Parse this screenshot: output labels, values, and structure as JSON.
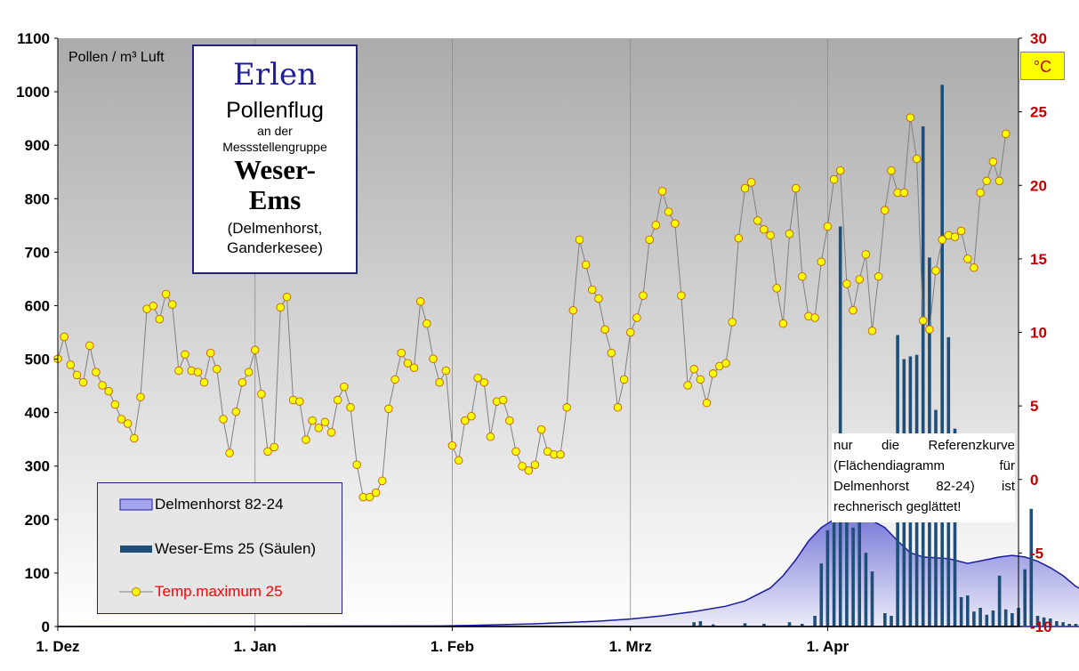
{
  "axis": {
    "left_unit": "Pollen / m³ Luft",
    "right_unit": "°C",
    "y_left_ticks": [
      "0",
      "100",
      "200",
      "300",
      "400",
      "500",
      "600",
      "700",
      "800",
      "900",
      "1000",
      "1100"
    ],
    "y_right_ticks": [
      "-10",
      "-5",
      "0",
      "5",
      "10",
      "15",
      "20",
      "25",
      "30"
    ],
    "x_ticks": [
      "1. Dez",
      "1. Jan",
      "1. Feb",
      "1. Mrz",
      "1. Apr"
    ]
  },
  "title_box": {
    "line1": "Erlen",
    "line2": "Pollenflug",
    "line3": "an der",
    "line4": "Messstellengruppe",
    "line5": "Weser-",
    "line6": "Ems",
    "line7": "(Delmenhorst,",
    "line8": "Ganderkesee)"
  },
  "legend": {
    "item1": "Delmenhorst 82-24",
    "item2": "Weser-Ems 25 (Säulen)",
    "item3": "Temp.maximum 25"
  },
  "note": "nur die Referenzkurve (Flächendiagramm für Delmenhorst 82-24) ist rechnerisch geglättet!",
  "colors": {
    "plot_bg_top": "#ababab",
    "plot_bg_bottom": "#ffffff",
    "bars": "#1f4e79",
    "area_fill": "#9a9ae6",
    "area_line": "#1a1aa0",
    "temp_line": "#808080",
    "temp_marker": "#ffff00",
    "right_axis": "#c00000"
  },
  "chart_data": {
    "type": "bar",
    "x_axis": "day index from 1. Dez (0) to ~20. Apr",
    "ylim_left": [
      0,
      1100
    ],
    "ylim_right": [
      -10,
      30
    ],
    "series": [
      {
        "name": "Delmenhorst 82-24",
        "kind": "area",
        "points": [
          [
            0,
            0
          ],
          [
            60,
            1
          ],
          [
            65,
            2
          ],
          [
            75,
            5
          ],
          [
            85,
            10
          ],
          [
            90,
            14
          ],
          [
            95,
            20
          ],
          [
            100,
            28
          ],
          [
            105,
            38
          ],
          [
            108,
            48
          ],
          [
            112,
            72
          ],
          [
            114,
            95
          ],
          [
            116,
            125
          ],
          [
            118,
            160
          ],
          [
            120,
            185
          ],
          [
            122,
            200
          ],
          [
            124,
            206
          ],
          [
            126,
            205
          ],
          [
            128,
            198
          ],
          [
            130,
            185
          ],
          [
            132,
            160
          ],
          [
            134,
            138
          ],
          [
            136,
            130
          ],
          [
            140,
            127
          ],
          [
            143,
            118
          ],
          [
            146,
            125
          ],
          [
            148,
            130
          ],
          [
            150,
            133
          ],
          [
            152,
            130
          ],
          [
            154,
            122
          ],
          [
            156,
            110
          ],
          [
            158,
            95
          ],
          [
            160,
            75
          ],
          [
            162,
            63
          ],
          [
            166,
            58
          ],
          [
            170,
            48
          ],
          [
            173,
            38
          ],
          [
            176,
            30
          ],
          [
            178,
            22
          ],
          [
            180,
            18
          ],
          [
            182,
            24
          ],
          [
            186,
            24
          ],
          [
            190,
            20
          ],
          [
            194,
            15
          ],
          [
            196,
            8
          ],
          [
            198,
            3
          ],
          [
            205,
            1
          ],
          [
            226,
            0
          ]
        ]
      },
      {
        "name": "Weser-Ems 25 (Säulen)",
        "kind": "bar",
        "points": [
          [
            100,
            8
          ],
          [
            101,
            10
          ],
          [
            103,
            4
          ],
          [
            108,
            6
          ],
          [
            111,
            5
          ],
          [
            115,
            8
          ],
          [
            117,
            5
          ],
          [
            119,
            20
          ],
          [
            120,
            118
          ],
          [
            121,
            180
          ],
          [
            122,
            235
          ],
          [
            123,
            748
          ],
          [
            124,
            200
          ],
          [
            125,
            185
          ],
          [
            126,
            353
          ],
          [
            127,
            138
          ],
          [
            128,
            103
          ],
          [
            130,
            25
          ],
          [
            131,
            20
          ],
          [
            132,
            545
          ],
          [
            133,
            500
          ],
          [
            134,
            505
          ],
          [
            135,
            508
          ],
          [
            136,
            935
          ],
          [
            137,
            690
          ],
          [
            138,
            405
          ],
          [
            139,
            1013
          ],
          [
            140,
            541
          ],
          [
            141,
            370
          ],
          [
            142,
            55
          ],
          [
            143,
            58
          ],
          [
            144,
            28
          ],
          [
            145,
            35
          ],
          [
            146,
            22
          ],
          [
            147,
            30
          ],
          [
            148,
            95
          ],
          [
            149,
            32
          ],
          [
            150,
            25
          ],
          [
            151,
            35
          ],
          [
            152,
            107
          ],
          [
            153,
            220
          ],
          [
            154,
            20
          ],
          [
            155,
            17
          ],
          [
            156,
            15
          ],
          [
            157,
            10
          ],
          [
            158,
            8
          ],
          [
            159,
            5
          ],
          [
            160,
            5
          ],
          [
            161,
            4
          ],
          [
            162,
            3
          ],
          [
            163,
            2
          ],
          [
            164,
            2
          ],
          [
            165,
            2
          ],
          [
            166,
            2
          ],
          [
            167,
            3
          ],
          [
            168,
            2
          ],
          [
            169,
            2
          ],
          [
            170,
            3
          ],
          [
            171,
            2
          ],
          [
            172,
            5
          ],
          [
            173,
            3
          ],
          [
            174,
            2
          ],
          [
            175,
            2
          ],
          [
            176,
            2
          ],
          [
            177,
            2
          ],
          [
            178,
            3
          ],
          [
            179,
            2
          ],
          [
            180,
            3
          ],
          [
            181,
            3
          ],
          [
            182,
            2
          ],
          [
            183,
            16
          ],
          [
            184,
            2
          ],
          [
            185,
            2
          ],
          [
            186,
            2
          ],
          [
            187,
            2
          ],
          [
            188,
            3
          ],
          [
            189,
            2
          ],
          [
            190,
            3
          ],
          [
            191,
            2
          ],
          [
            192,
            2
          ],
          [
            193,
            2
          ],
          [
            194,
            2
          ],
          [
            195,
            2
          ],
          [
            196,
            2
          ],
          [
            197,
            3
          ],
          [
            198,
            2
          ],
          [
            199,
            2
          ],
          [
            200,
            5
          ],
          [
            202,
            2
          ],
          [
            208,
            2
          ],
          [
            210,
            2
          ],
          [
            212,
            2
          ],
          [
            215,
            3
          ],
          [
            218,
            2
          ],
          [
            220,
            2
          ],
          [
            222,
            2
          ]
        ]
      },
      {
        "name": "Temp.maximum 25",
        "kind": "line",
        "axis": "right",
        "y": [
          8.2,
          9.7,
          7.8,
          7.1,
          6.6,
          9.1,
          7.3,
          6.4,
          6.0,
          5.1,
          4.1,
          3.8,
          2.8,
          5.6,
          11.6,
          11.8,
          10.9,
          12.6,
          11.9,
          7.4,
          8.5,
          7.4,
          7.3,
          6.6,
          8.6,
          7.5,
          4.1,
          1.8,
          4.6,
          6.6,
          7.3,
          8.8,
          5.8,
          1.9,
          2.2,
          11.7,
          12.4,
          5.4,
          5.3,
          2.7,
          4.0,
          3.5,
          3.9,
          3.2,
          5.4,
          6.3,
          4.9,
          1.0,
          -1.2,
          -1.2,
          -0.9,
          -0.1,
          4.8,
          6.8,
          8.6,
          7.9,
          7.6,
          12.1,
          10.6,
          8.2,
          6.6,
          7.4,
          2.3,
          1.3,
          4.0,
          4.3,
          6.9,
          6.6,
          2.9,
          5.3,
          5.4,
          4.0,
          1.9,
          0.9,
          0.6,
          1.0,
          3.4,
          1.9,
          1.7,
          1.7,
          4.9,
          11.5,
          16.3,
          14.6,
          12.9,
          12.3,
          10.2,
          8.6,
          4.9,
          6.8,
          10.0,
          11.0,
          12.5,
          16.3,
          17.3,
          19.6,
          18.2,
          17.4,
          12.5,
          6.4,
          7.5,
          6.8,
          5.2,
          7.2,
          7.7,
          7.9,
          10.7,
          16.4,
          19.8,
          20.2,
          17.6,
          17.0,
          16.6,
          13.0,
          10.6,
          16.7,
          19.8,
          13.8,
          11.1,
          11.0,
          14.8,
          17.2,
          20.4,
          21.0,
          13.3,
          11.5,
          13.6,
          15.3,
          10.1,
          13.8,
          18.3,
          21.0,
          19.5,
          19.5,
          24.6,
          21.8,
          10.8,
          10.2,
          14.2,
          16.3,
          16.6,
          16.5,
          16.9,
          15.0,
          14.4,
          19.5,
          20.3,
          21.6,
          20.3,
          23.5
        ]
      }
    ]
  }
}
